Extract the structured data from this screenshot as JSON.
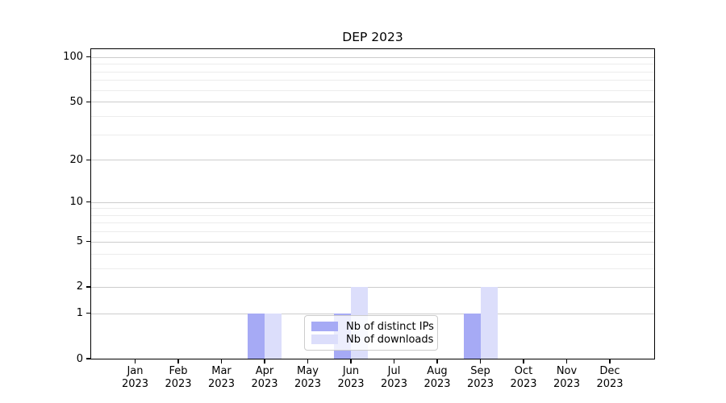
{
  "figure": {
    "title": "DEP 2023"
  },
  "chart_data": {
    "type": "bar",
    "title": "DEP 2023",
    "xlabel": "",
    "ylabel": "",
    "categories": [
      "Jan",
      "Feb",
      "Mar",
      "Apr",
      "May",
      "Jun",
      "Jul",
      "Aug",
      "Sep",
      "Oct",
      "Nov",
      "Dec"
    ],
    "x_year_label": "2023",
    "series": [
      {
        "name": "Nb of distinct IPs",
        "color": "#a6aaf5",
        "values": [
          0,
          0,
          0,
          1,
          0,
          1,
          0,
          0,
          1,
          0,
          0,
          0
        ]
      },
      {
        "name": "Nb of downloads",
        "color": "#dcdefb",
        "values": [
          0,
          0,
          0,
          1,
          0,
          2,
          0,
          0,
          2,
          0,
          0,
          0
        ]
      }
    ],
    "y_scale": "log1p",
    "y_axis_max": 113,
    "y_ticks": [
      0,
      1,
      2,
      5,
      10,
      20,
      50,
      100
    ],
    "y_minor_gridlines": [
      3,
      4,
      6,
      7,
      8,
      9,
      30,
      40,
      60,
      70,
      80,
      90
    ],
    "grid": "both",
    "legend_position": "lower center",
    "colors": {
      "spine": "#000000",
      "grid_major": "#cccccc",
      "grid_minor": "#ececec",
      "text": "#000000",
      "legend_border": "#cccccc"
    }
  }
}
